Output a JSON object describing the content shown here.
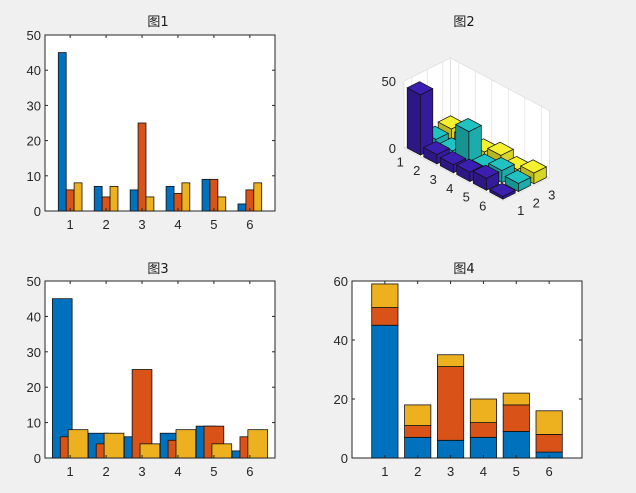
{
  "chart_data": [
    {
      "type": "bar",
      "title": "图1",
      "mode": "grouped",
      "categories": [
        "1",
        "2",
        "3",
        "4",
        "5",
        "6"
      ],
      "series": [
        {
          "values": [
            45,
            7,
            6,
            7,
            9,
            2
          ],
          "color": "#0072bd"
        },
        {
          "values": [
            6,
            4,
            25,
            5,
            9,
            6
          ],
          "color": "#d95319"
        },
        {
          "values": [
            8,
            7,
            4,
            8,
            4,
            8
          ],
          "color": "#edb120"
        }
      ],
      "ylim": [
        0,
        50
      ],
      "yticks": [
        "0",
        "10",
        "20",
        "30",
        "40",
        "50"
      ]
    },
    {
      "type": "bar",
      "title": "图2",
      "mode": "3d",
      "rows": [
        "1",
        "2",
        "3",
        "4",
        "5",
        "6"
      ],
      "cols": [
        "1",
        "2",
        "3"
      ],
      "zticks": [
        "0",
        "50"
      ],
      "zlim": [
        0,
        50
      ],
      "values": [
        [
          45,
          6,
          8
        ],
        [
          7,
          4,
          7
        ],
        [
          6,
          25,
          4
        ],
        [
          7,
          5,
          8
        ],
        [
          9,
          9,
          4
        ],
        [
          2,
          6,
          8
        ]
      ],
      "colors": [
        "#3a1fb0",
        "#21c3c2",
        "#f6f12e"
      ]
    },
    {
      "type": "bar",
      "title": "图3",
      "mode": "overlapped",
      "categories": [
        "1",
        "2",
        "3",
        "4",
        "5",
        "6"
      ],
      "series": [
        {
          "values": [
            45,
            7,
            6,
            7,
            9,
            2
          ],
          "color": "#0072bd"
        },
        {
          "values": [
            6,
            4,
            25,
            5,
            9,
            6
          ],
          "color": "#d95319"
        },
        {
          "values": [
            8,
            7,
            4,
            8,
            4,
            8
          ],
          "color": "#edb120"
        }
      ],
      "ylim": [
        0,
        50
      ],
      "yticks": [
        "0",
        "10",
        "20",
        "30",
        "40",
        "50"
      ]
    },
    {
      "type": "bar",
      "title": "图4",
      "mode": "stacked",
      "categories": [
        "1",
        "2",
        "3",
        "4",
        "5",
        "6"
      ],
      "series": [
        {
          "values": [
            45,
            7,
            6,
            7,
            9,
            2
          ],
          "color": "#0072bd"
        },
        {
          "values": [
            6,
            4,
            25,
            5,
            9,
            6
          ],
          "color": "#d95319"
        },
        {
          "values": [
            8,
            7,
            4,
            8,
            4,
            8
          ],
          "color": "#edb120"
        }
      ],
      "ylim": [
        0,
        60
      ],
      "yticks": [
        "0",
        "20",
        "40",
        "60"
      ]
    }
  ]
}
